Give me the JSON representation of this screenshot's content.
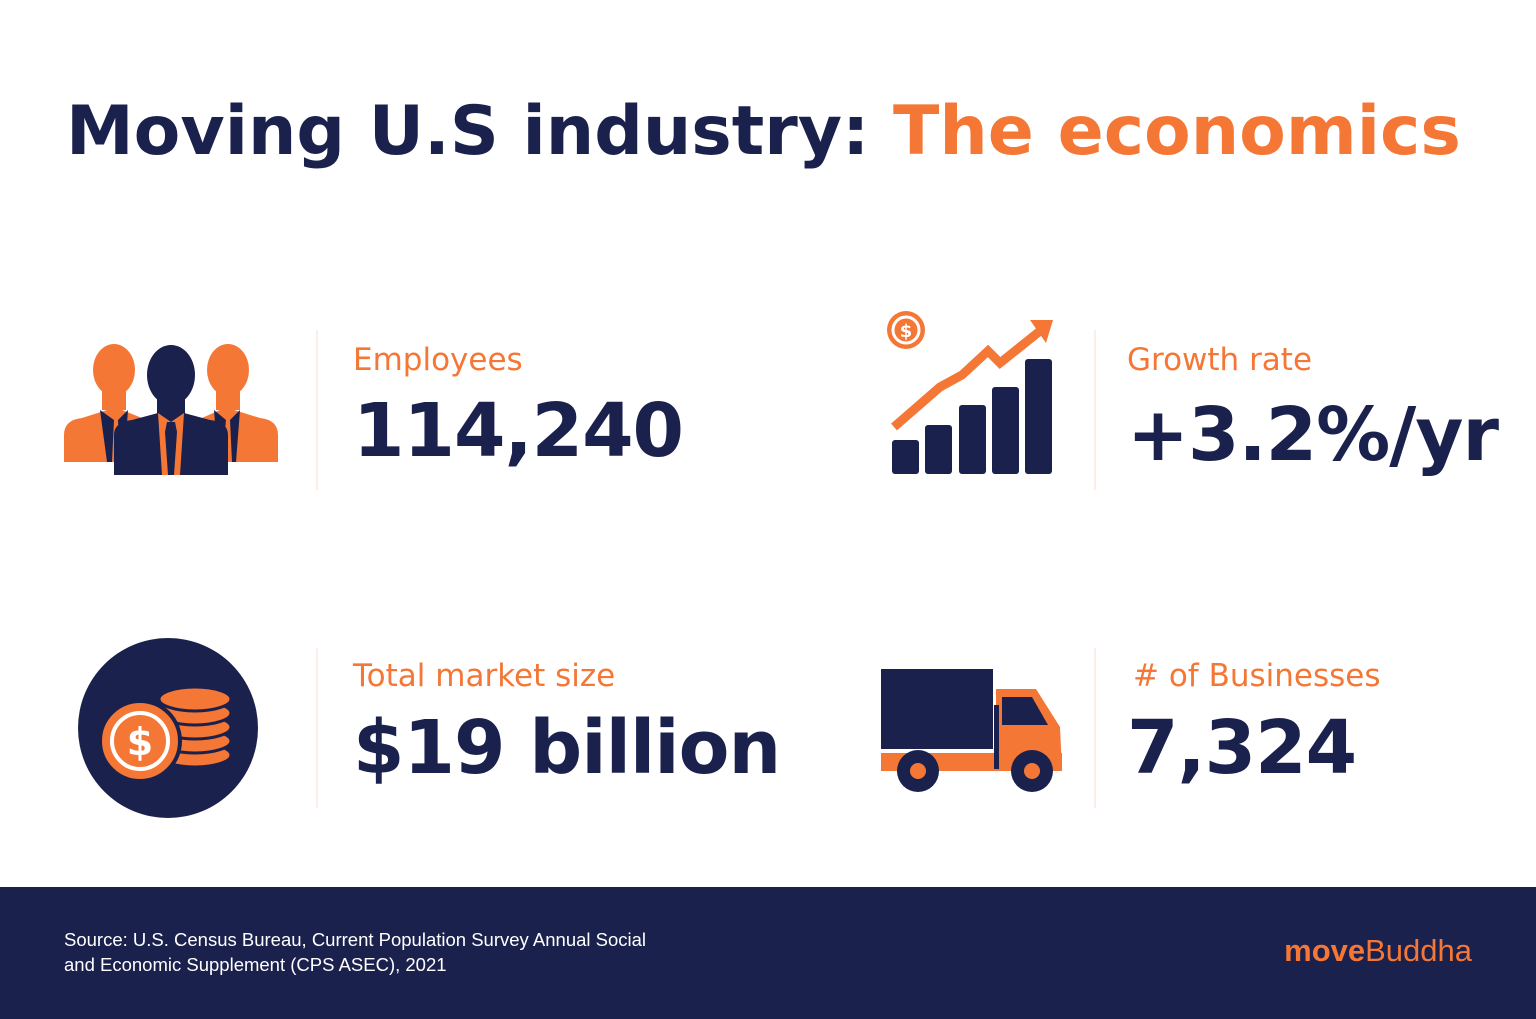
{
  "title": {
    "main": "Moving U.S industry: ",
    "accent": "The economics"
  },
  "stats": [
    {
      "label": "Employees",
      "value": "114,240",
      "icon": "people-icon"
    },
    {
      "label": "Growth rate",
      "value": "+3.2%/yr",
      "icon": "growth-chart-icon"
    },
    {
      "label": "Total market size",
      "value": "$19 billion",
      "icon": "coins-icon"
    },
    {
      "label": "# of Businesses",
      "value": "7,324",
      "icon": "truck-icon"
    }
  ],
  "footer": {
    "source_line1": "Source: U.S. Census Bureau, Current Population Survey Annual Social",
    "source_line2": "and Economic Supplement (CPS ASEC), 2021",
    "logo_bold": "move",
    "logo_light": "Buddha"
  },
  "colors": {
    "navy": "#1b214d",
    "orange": "#f47735"
  }
}
